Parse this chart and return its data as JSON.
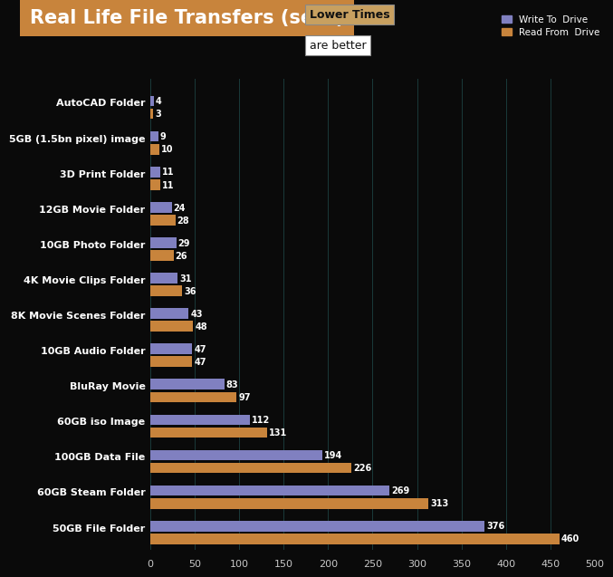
{
  "title": "Real Life File Transfers (secs)",
  "categories": [
    "AutoCAD Folder",
    "5GB (1.5bn pixel) image",
    "3D Print Folder",
    "12GB Movie Folder",
    "10GB Photo Folder",
    "4K Movie Clips Folder",
    "8K Movie Scenes Folder",
    "10GB Audio Folder",
    "BluRay Movie",
    "60GB iso Image",
    "100GB Data File",
    "60GB Steam Folder",
    "50GB File Folder"
  ],
  "write_values": [
    4,
    9,
    11,
    24,
    29,
    31,
    43,
    47,
    83,
    112,
    194,
    269,
    376
  ],
  "read_values": [
    3,
    10,
    11,
    28,
    26,
    36,
    48,
    47,
    97,
    131,
    226,
    313,
    460
  ],
  "write_color": "#8080c0",
  "read_color": "#c8843c",
  "bg_color": "#0a0a0a",
  "title_bg_color": "#c8843c",
  "title_text_color": "#ffffff",
  "axis_label_color": "#ffffff",
  "tick_label_color": "#c8c8c8",
  "value_label_color": "#ffffff",
  "legend_box1_text": "Lower Times",
  "legend_box2_text": "are better",
  "legend_write_label": "Write To  Drive",
  "legend_read_label": "Read From  Drive",
  "xlim": [
    0,
    500
  ],
  "grid_color": "#1a3a3a"
}
